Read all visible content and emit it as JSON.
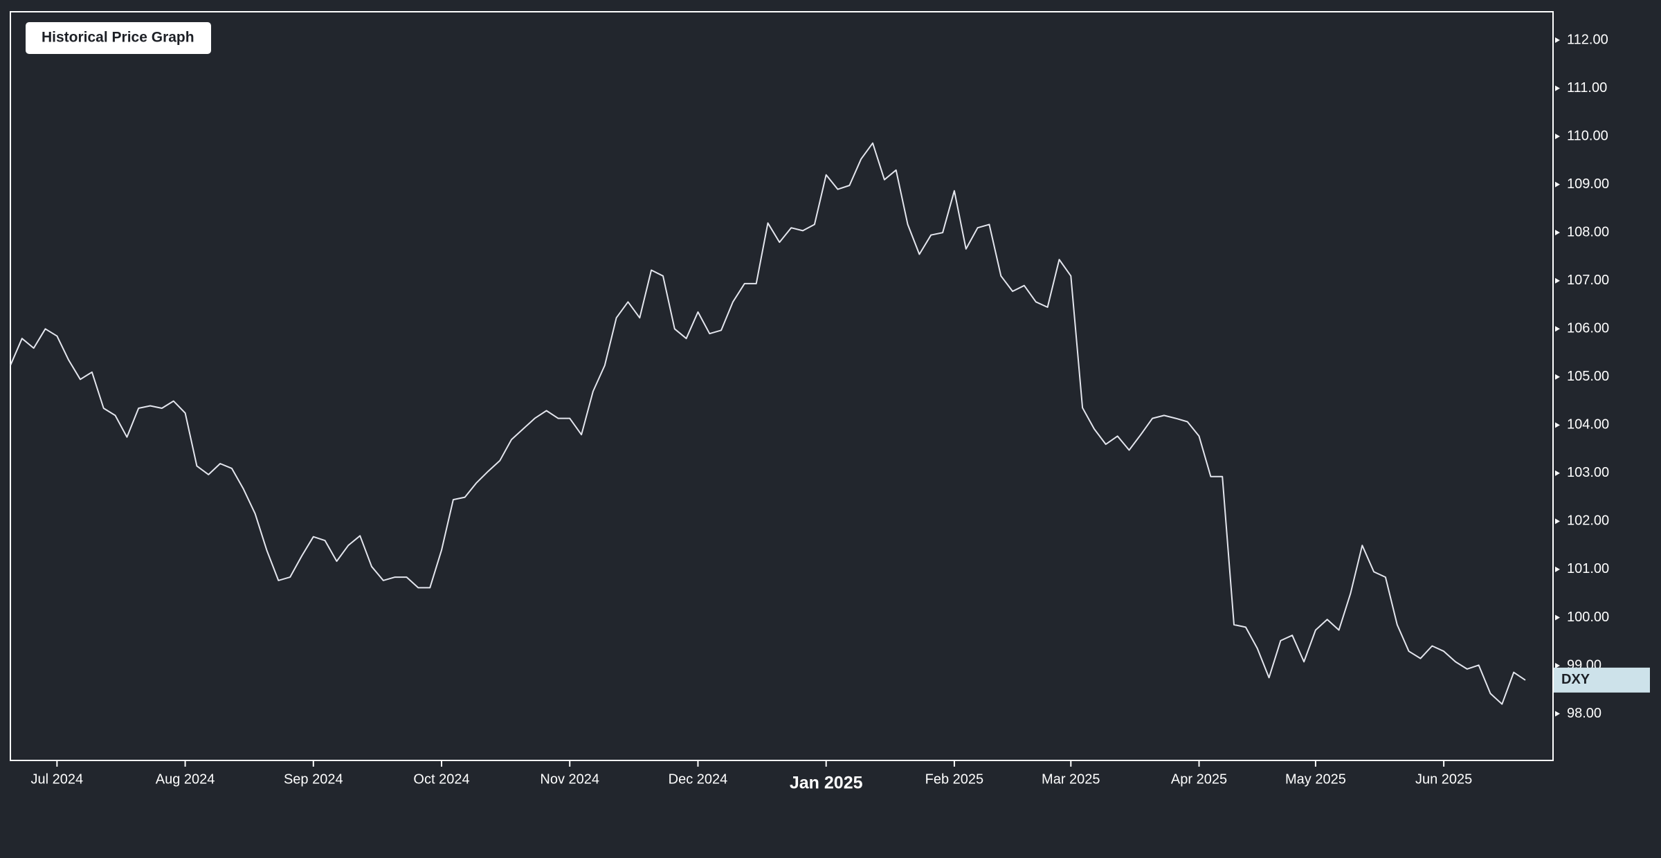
{
  "chart_data": {
    "type": "line",
    "title": "Historical Price Graph",
    "categories": [
      null,
      null,
      null,
      null,
      "Jul 2024",
      null,
      null,
      null,
      null,
      null,
      null,
      null,
      null,
      null,
      null,
      "Aug 2024",
      null,
      null,
      null,
      null,
      null,
      null,
      null,
      null,
      null,
      null,
      "Sep 2024",
      null,
      null,
      null,
      null,
      null,
      null,
      null,
      null,
      null,
      null,
      "Oct 2024",
      null,
      null,
      null,
      null,
      null,
      null,
      null,
      null,
      null,
      null,
      "Nov 2024",
      null,
      null,
      null,
      null,
      null,
      null,
      null,
      null,
      null,
      null,
      "Dec 2024",
      null,
      null,
      null,
      null,
      null,
      null,
      null,
      null,
      null,
      null,
      "Jan 2025",
      null,
      null,
      null,
      null,
      null,
      null,
      null,
      null,
      null,
      null,
      "Feb 2025",
      null,
      null,
      null,
      null,
      null,
      null,
      null,
      null,
      null,
      "Mar 2025",
      null,
      null,
      null,
      null,
      null,
      null,
      null,
      null,
      null,
      null,
      "Apr 2025",
      null,
      null,
      null,
      null,
      null,
      null,
      null,
      null,
      null,
      "May 2025",
      null,
      null,
      null,
      null,
      null,
      null,
      null,
      null,
      null,
      null,
      "Jun 2025",
      null,
      null,
      null,
      null,
      null,
      null,
      null
    ],
    "series": [
      {
        "name": "DXY",
        "color": "#e4e6ee",
        "values": [
          105.24,
          105.8,
          105.6,
          106.0,
          105.85,
          105.35,
          104.95,
          105.1,
          104.35,
          104.2,
          103.75,
          104.35,
          104.4,
          104.35,
          104.5,
          104.25,
          103.15,
          102.97,
          103.2,
          103.1,
          102.67,
          102.16,
          101.4,
          100.77,
          100.84,
          101.28,
          101.68,
          101.6,
          101.17,
          101.5,
          101.7,
          101.06,
          100.77,
          100.84,
          100.84,
          100.62,
          100.62,
          101.4,
          102.45,
          102.5,
          102.8,
          103.04,
          103.26,
          103.7,
          103.92,
          104.14,
          104.3,
          104.14,
          104.14,
          103.8,
          104.7,
          105.24,
          106.23,
          106.56,
          106.23,
          107.22,
          107.1,
          106.0,
          105.8,
          106.35,
          105.9,
          105.97,
          106.56,
          106.94,
          106.94,
          108.2,
          107.8,
          108.1,
          108.04,
          108.17,
          109.2,
          108.9,
          108.98,
          109.53,
          109.86,
          109.1,
          109.3,
          108.17,
          107.55,
          107.95,
          108.0,
          108.87,
          107.66,
          108.1,
          108.17,
          107.1,
          106.78,
          106.9,
          106.56,
          106.45,
          107.44,
          107.1,
          104.36,
          103.92,
          103.6,
          103.77,
          103.48,
          103.8,
          104.14,
          104.2,
          104.14,
          104.07,
          103.77,
          102.93,
          102.93,
          99.85,
          99.8,
          99.36,
          98.75,
          99.52,
          99.63,
          99.08,
          99.74,
          99.96,
          99.74,
          100.5,
          101.5,
          100.95,
          100.84,
          99.85,
          99.3,
          99.15,
          99.41,
          99.3,
          99.08,
          98.93,
          99.01,
          98.42,
          98.2,
          98.86,
          98.7
        ]
      }
    ],
    "ylim": [
      97.03,
      112.59
    ],
    "yticks": [
      {
        "value": 98,
        "label": "98.00"
      },
      {
        "value": 99,
        "label": "99.00"
      },
      {
        "value": 100,
        "label": "100.00"
      },
      {
        "value": 101,
        "label": "101.00"
      },
      {
        "value": 102,
        "label": "102.00"
      },
      {
        "value": 103,
        "label": "103.00"
      },
      {
        "value": 104,
        "label": "104.00"
      },
      {
        "value": 105,
        "label": "105.00"
      },
      {
        "value": 106,
        "label": "106.00"
      },
      {
        "value": 107,
        "label": "107.00"
      },
      {
        "value": 108,
        "label": "108.00"
      },
      {
        "value": 109,
        "label": "109.00"
      },
      {
        "value": 110,
        "label": "110.00"
      },
      {
        "value": 111,
        "label": "111.00"
      },
      {
        "value": 112,
        "label": "112.00"
      }
    ],
    "grid": false
  }
}
